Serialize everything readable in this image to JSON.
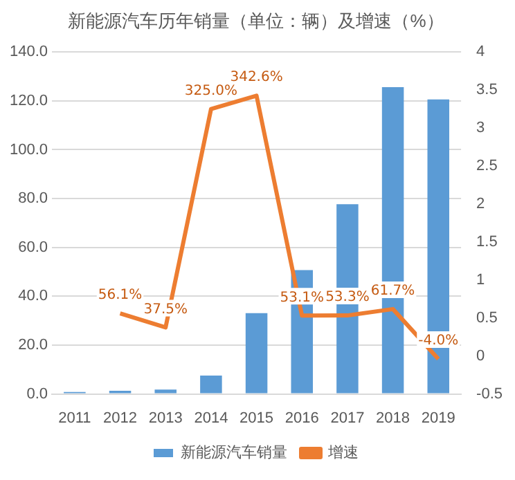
{
  "chart_data": {
    "type": "bar",
    "title": "新能源汽车历年销量（单位：辆）及增速（%）",
    "categories": [
      "2011",
      "2012",
      "2013",
      "2014",
      "2015",
      "2016",
      "2017",
      "2018",
      "2019"
    ],
    "series": [
      {
        "name": "新能源汽车销量",
        "color": "#5b9bd5",
        "values": [
          0.8,
          1.3,
          1.8,
          7.5,
          33.1,
          50.7,
          77.7,
          125.6,
          120.6
        ]
      },
      {
        "name": "增速",
        "type": "line",
        "axis": "y2",
        "color": "#ed7d31",
        "values": [
          null,
          0.561,
          0.375,
          3.25,
          3.426,
          0.531,
          0.533,
          0.617,
          -0.04
        ],
        "value_labels": [
          null,
          "56.1%",
          "37.5%",
          "325.0%",
          "342.6%",
          "53.1%",
          "53.3%",
          "61.7%",
          "-4.0%"
        ]
      }
    ],
    "ylim": [
      0,
      140
    ],
    "yticks": [
      {
        "value": 0,
        "label": "0.0"
      },
      {
        "value": 20,
        "label": "20.0"
      },
      {
        "value": 40,
        "label": "40.0"
      },
      {
        "value": 60,
        "label": "60.0"
      },
      {
        "value": 80,
        "label": "80.0"
      },
      {
        "value": 100,
        "label": "100.0"
      },
      {
        "value": 120,
        "label": "120.0"
      },
      {
        "value": 140,
        "label": "140.0"
      }
    ],
    "y2lim": [
      -0.5,
      4
    ],
    "y2ticks": [
      -0.5,
      0,
      0.5,
      1,
      1.5,
      2,
      2.5,
      3,
      3.5,
      4
    ],
    "grid": "y",
    "legend": "bottom",
    "marker": "none"
  }
}
